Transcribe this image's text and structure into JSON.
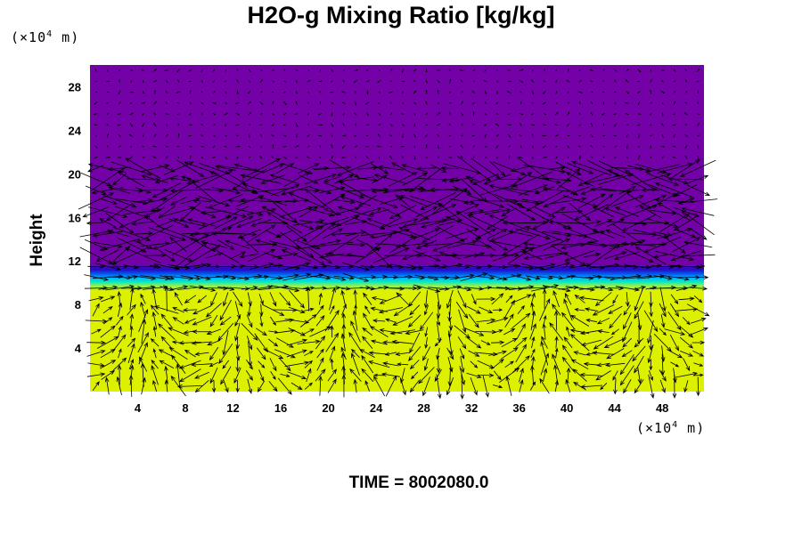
{
  "chart_data": {
    "type": "heatmap",
    "title": "H2O-g Mixing Ratio [kg/kg]",
    "xlabel": "",
    "ylabel": "Height",
    "x_unit_prefix": "(×10",
    "x_unit_exp": "4",
    "x_unit_suffix": " m)",
    "y_unit_prefix": "(×10",
    "y_unit_exp": "4",
    "y_unit_suffix": " m)",
    "xlim": [
      0,
      51.5
    ],
    "ylim": [
      0,
      30
    ],
    "x_ticks": [
      4,
      8,
      12,
      16,
      20,
      24,
      28,
      32,
      36,
      40,
      44,
      48
    ],
    "y_ticks": [
      4,
      8,
      12,
      16,
      20,
      24,
      28
    ],
    "colors": {
      "dry": "#7400a8",
      "moist": "#dcf000",
      "transition": [
        "#dcf000",
        "#a0f040",
        "#00e8c8",
        "#00b4ff",
        "#0060f0",
        "#2010c8",
        "#5000b0"
      ]
    },
    "transition_layer": {
      "bottom": 9.2,
      "top": 11.6
    },
    "vectors": "velocity field arrows (black)",
    "time_label": "TIME = 8002080.0"
  }
}
